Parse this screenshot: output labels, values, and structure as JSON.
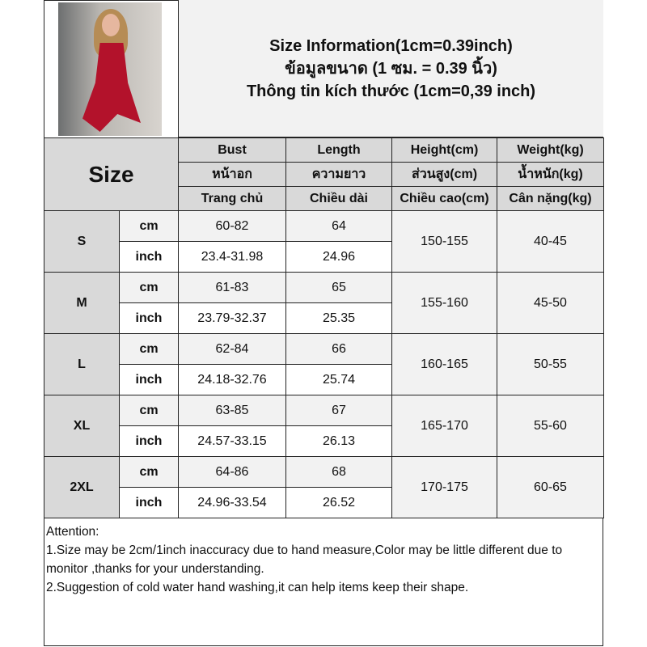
{
  "title": {
    "line1": "Size Information(1cm=0.39inch)",
    "line2": "ข้อมูลขนาด (1 ซม. = 0.39 นิ้ว)",
    "line3": "Thông tin kích thước (1cm=0,39 inch)"
  },
  "header": {
    "size": "Size",
    "columns": [
      {
        "en": "Bust",
        "th": "หน้าอก",
        "vi": "Trang chủ"
      },
      {
        "en": "Length",
        "th": "ความยาว",
        "vi": "Chiều dài"
      },
      {
        "en": "Height(cm)",
        "th": "ส่วนสูง(cm)",
        "vi": "Chiều cao(cm)"
      },
      {
        "en": "Weight(kg)",
        "th": "น้ำหนัก(kg)",
        "vi": "Cân nặng(kg)"
      }
    ]
  },
  "units": {
    "cm": "cm",
    "inch": "inch"
  },
  "rows": [
    {
      "size": "S",
      "bust_cm": "60-82",
      "length_cm": "64",
      "bust_in": "23.4-31.98",
      "length_in": "24.96",
      "height": "150-155",
      "weight": "40-45"
    },
    {
      "size": "M",
      "bust_cm": "61-83",
      "length_cm": "65",
      "bust_in": "23.79-32.37",
      "length_in": "25.35",
      "height": "155-160",
      "weight": "45-50"
    },
    {
      "size": "L",
      "bust_cm": "62-84",
      "length_cm": "66",
      "bust_in": "24.18-32.76",
      "length_in": "25.74",
      "height": "160-165",
      "weight": "50-55"
    },
    {
      "size": "XL",
      "bust_cm": "63-85",
      "length_cm": "67",
      "bust_in": "24.57-33.15",
      "length_in": "26.13",
      "height": "165-170",
      "weight": "55-60"
    },
    {
      "size": "2XL",
      "bust_cm": "64-86",
      "length_cm": "68",
      "bust_in": "24.96-33.54",
      "length_in": "26.52",
      "height": "170-175",
      "weight": "60-65"
    }
  ],
  "attention": {
    "heading": "Attention:",
    "note1": "1.Size may be 2cm/1inch inaccuracy due to hand measure,Color may be little different due to monitor ,thanks for your understanding.",
    "note2": "2.Suggestion of cold water hand washing,it can help items keep their shape."
  }
}
